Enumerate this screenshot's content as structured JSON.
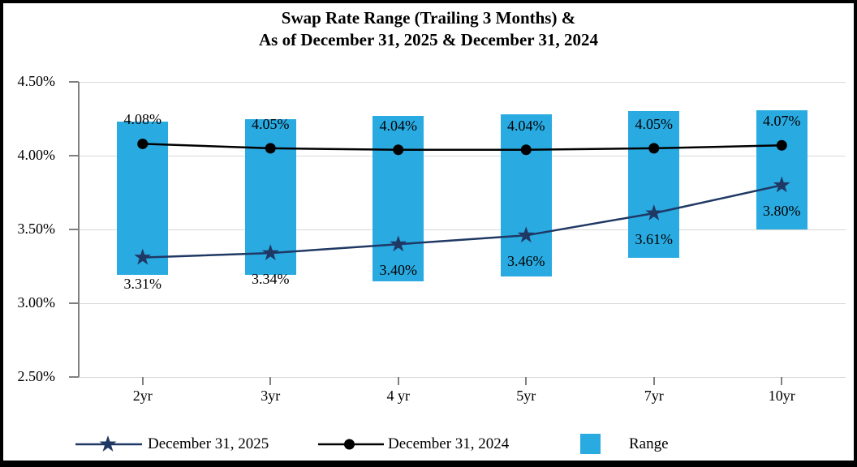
{
  "title": {
    "line1": "Swap Rate Range (Trailing 3 Months) &",
    "line2": "As of December 31, 2025 & December 31, 2024"
  },
  "colors": {
    "background": "#FFFFFF",
    "frame_border": "#000000",
    "gridline": "#D9D9D9",
    "axis_line": "#808080",
    "text": "#000000",
    "range_bar": "#29ABE2",
    "series_2025": "#1F3864",
    "series_2024": "#000000"
  },
  "chart_data": {
    "type": "combo: floating range bars + two marker line series",
    "categories": [
      "2yr",
      "3yr",
      "4 yr",
      "5yr",
      "7yr",
      "10yr"
    ],
    "y_axis": {
      "min": 2.5,
      "max": 4.5,
      "step": 0.5,
      "tick_values": [
        4.5,
        4.0,
        3.5,
        3.0,
        2.5
      ],
      "tick_labels": [
        "4.50%",
        "4.00%",
        "3.50%",
        "3.00%",
        "2.50%"
      ]
    },
    "grid": true,
    "legend_position": "bottom",
    "series": [
      {
        "name": "December 31, 2025",
        "type": "line",
        "marker": "star",
        "color": "#1F3864",
        "values": [
          3.31,
          3.34,
          3.4,
          3.46,
          3.61,
          3.8
        ],
        "labels": [
          "3.31%",
          "3.34%",
          "3.40%",
          "3.46%",
          "3.61%",
          "3.80%"
        ],
        "label_position": "below"
      },
      {
        "name": "December 31, 2024",
        "type": "line",
        "marker": "circle",
        "color": "#000000",
        "values": [
          4.08,
          4.05,
          4.04,
          4.04,
          4.05,
          4.07
        ],
        "labels": [
          "4.08%",
          "4.05%",
          "4.04%",
          "4.04%",
          "4.05%",
          "4.07%"
        ],
        "label_position": "above"
      },
      {
        "name": "Range",
        "type": "bar",
        "color": "#29ABE2",
        "high": [
          4.23,
          4.25,
          4.27,
          4.28,
          4.3,
          4.31
        ],
        "low": [
          3.19,
          3.19,
          3.15,
          3.18,
          3.31,
          3.5
        ]
      }
    ]
  }
}
